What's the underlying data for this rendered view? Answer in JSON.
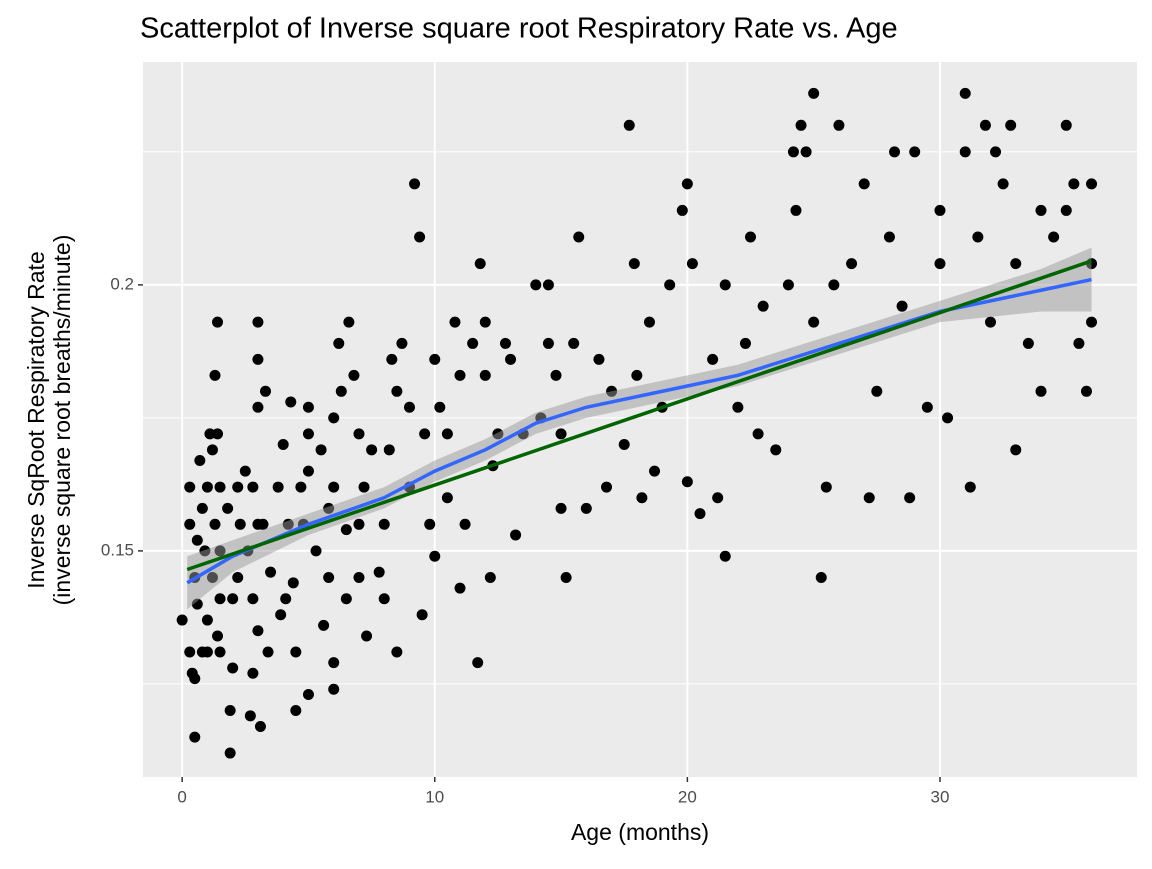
{
  "chart_data": {
    "type": "scatter",
    "title": "Scatterplot of Inverse square root Respiratory Rate vs. Age",
    "x_label": "Age (months)",
    "y_label": [
      "Inverse SqRoot Respiratory Rate",
      "(inverse square root breaths/minute)"
    ],
    "xlim": [
      -1.55,
      37.8
    ],
    "xticks": [
      0,
      10,
      20,
      30
    ],
    "ylim": [
      0.1075,
      0.2419
    ],
    "yticks": [
      0.15,
      0.2
    ],
    "yminor": [
      0.125,
      0.175,
      0.225
    ],
    "grid": true,
    "points": {
      "color": "#000000",
      "x": [
        0,
        0.3,
        0.3,
        0.3,
        0.4,
        0.5,
        0.5,
        0.5,
        0.6,
        0.6,
        0.7,
        0.8,
        0.8,
        0.9,
        1,
        1,
        1,
        1.1,
        1.2,
        1.2,
        1.3,
        1.3,
        1.4,
        1.4,
        1.5,
        1.5,
        1.5,
        1.5,
        1.4,
        1.8,
        1.9,
        1.9,
        2,
        2,
        2.2,
        2.2,
        2.3,
        2.5,
        2.6,
        2.7,
        2.8,
        2.8,
        2.8,
        3,
        3,
        3,
        3,
        3,
        3.1,
        3.2,
        3.3,
        3.4,
        3.5,
        3.8,
        3.9,
        4,
        4.1,
        4.2,
        4.3,
        4.4,
        4.5,
        4.5,
        4.7,
        4.8,
        5,
        5,
        5,
        5,
        5.3,
        5.5,
        5.6,
        5.8,
        5.8,
        6,
        6,
        6,
        6,
        6.2,
        6.3,
        6.5,
        6.5,
        6.6,
        6.8,
        7,
        7,
        7,
        7.2,
        7.3,
        7.5,
        7.8,
        8,
        8,
        8.2,
        8.3,
        8.5,
        8.5,
        8.7,
        9,
        9,
        9.2,
        9.4,
        9.5,
        9.6,
        9.8,
        10,
        10,
        10.2,
        10.5,
        10.5,
        10.8,
        11,
        11,
        11.2,
        11.5,
        11.7,
        11.8,
        12,
        12,
        12.2,
        12.3,
        12.5,
        12.8,
        13,
        13.2,
        13.5,
        14,
        14.2,
        14.5,
        14.5,
        14.8,
        15,
        15,
        15.2,
        15.5,
        15.7,
        16,
        16.5,
        16.8,
        17,
        17.5,
        17.7,
        17.9,
        18,
        18.2,
        18.5,
        18.7,
        19,
        19.3,
        19.8,
        20,
        20,
        20.2,
        20.5,
        21,
        21.2,
        21.5,
        21.5,
        22,
        22.3,
        22.5,
        22.8,
        23,
        23.5,
        24,
        24.2,
        24.3,
        24.5,
        24.7,
        25,
        25,
        25.3,
        25.5,
        25.8,
        26,
        26.5,
        27,
        27.2,
        27.5,
        28,
        28.2,
        28.5,
        28.8,
        29,
        29.5,
        30,
        30,
        30.3,
        31,
        31,
        31.2,
        31.5,
        31.8,
        32,
        32.2,
        32.5,
        32.8,
        33,
        33,
        33.5,
        34,
        34,
        34.5,
        35,
        35,
        35.3,
        35.5,
        36,
        36,
        36,
        35.8
      ],
      "y": [
        0.137,
        0.162,
        0.155,
        0.131,
        0.127,
        0.126,
        0.115,
        0.145,
        0.152,
        0.14,
        0.167,
        0.158,
        0.131,
        0.15,
        0.162,
        0.137,
        0.131,
        0.172,
        0.169,
        0.145,
        0.183,
        0.155,
        0.172,
        0.134,
        0.162,
        0.131,
        0.15,
        0.141,
        0.193,
        0.158,
        0.112,
        0.12,
        0.141,
        0.128,
        0.145,
        0.162,
        0.155,
        0.165,
        0.15,
        0.119,
        0.162,
        0.127,
        0.141,
        0.193,
        0.186,
        0.177,
        0.155,
        0.135,
        0.117,
        0.155,
        0.18,
        0.131,
        0.146,
        0.162,
        0.138,
        0.17,
        0.141,
        0.155,
        0.178,
        0.144,
        0.131,
        0.12,
        0.162,
        0.155,
        0.172,
        0.165,
        0.123,
        0.177,
        0.15,
        0.169,
        0.136,
        0.145,
        0.158,
        0.175,
        0.162,
        0.129,
        0.124,
        0.189,
        0.18,
        0.154,
        0.141,
        0.193,
        0.183,
        0.172,
        0.155,
        0.145,
        0.162,
        0.134,
        0.169,
        0.146,
        0.141,
        0.155,
        0.169,
        0.186,
        0.18,
        0.131,
        0.189,
        0.177,
        0.162,
        0.219,
        0.209,
        0.138,
        0.172,
        0.155,
        0.186,
        0.149,
        0.177,
        0.172,
        0.16,
        0.193,
        0.183,
        0.143,
        0.155,
        0.189,
        0.129,
        0.204,
        0.193,
        0.183,
        0.145,
        0.166,
        0.172,
        0.189,
        0.186,
        0.153,
        0.172,
        0.2,
        0.175,
        0.189,
        0.2,
        0.183,
        0.172,
        0.158,
        0.145,
        0.189,
        0.209,
        0.158,
        0.186,
        0.162,
        0.18,
        0.17,
        0.23,
        0.204,
        0.183,
        0.16,
        0.193,
        0.165,
        0.177,
        0.2,
        0.214,
        0.219,
        0.163,
        0.204,
        0.157,
        0.186,
        0.16,
        0.2,
        0.149,
        0.177,
        0.189,
        0.209,
        0.172,
        0.196,
        0.169,
        0.2,
        0.225,
        0.214,
        0.23,
        0.225,
        0.236,
        0.193,
        0.145,
        0.162,
        0.2,
        0.23,
        0.204,
        0.219,
        0.16,
        0.18,
        0.209,
        0.225,
        0.196,
        0.16,
        0.225,
        0.177,
        0.204,
        0.214,
        0.175,
        0.236,
        0.225,
        0.162,
        0.209,
        0.23,
        0.193,
        0.225,
        0.219,
        0.23,
        0.204,
        0.169,
        0.189,
        0.214,
        0.18,
        0.209,
        0.23,
        0.214,
        0.219,
        0.189,
        0.219,
        0.204,
        0.193,
        0.18
      ]
    },
    "smooth": {
      "color": "#3366ff",
      "band_color": "#999999",
      "x": [
        0.2,
        2,
        5,
        8,
        10,
        12,
        14,
        16,
        18,
        20,
        22,
        24,
        26,
        28,
        30,
        32,
        34,
        36
      ],
      "values": [
        0.144,
        0.149,
        0.155,
        0.16,
        0.165,
        0.169,
        0.174,
        0.177,
        0.179,
        0.181,
        0.183,
        0.186,
        0.189,
        0.192,
        0.195,
        0.197,
        0.199,
        0.201
      ],
      "lower": [
        0.139,
        0.146,
        0.153,
        0.158,
        0.163,
        0.167,
        0.172,
        0.175,
        0.177,
        0.179,
        0.181,
        0.184,
        0.187,
        0.19,
        0.193,
        0.194,
        0.195,
        0.195
      ],
      "upper": [
        0.149,
        0.152,
        0.157,
        0.162,
        0.167,
        0.171,
        0.176,
        0.179,
        0.181,
        0.183,
        0.185,
        0.188,
        0.191,
        0.194,
        0.197,
        0.2,
        0.203,
        0.207
      ]
    },
    "fit": {
      "color": "#006400",
      "x": [
        0.2,
        36
      ],
      "values": [
        0.1465,
        0.2045
      ]
    }
  }
}
